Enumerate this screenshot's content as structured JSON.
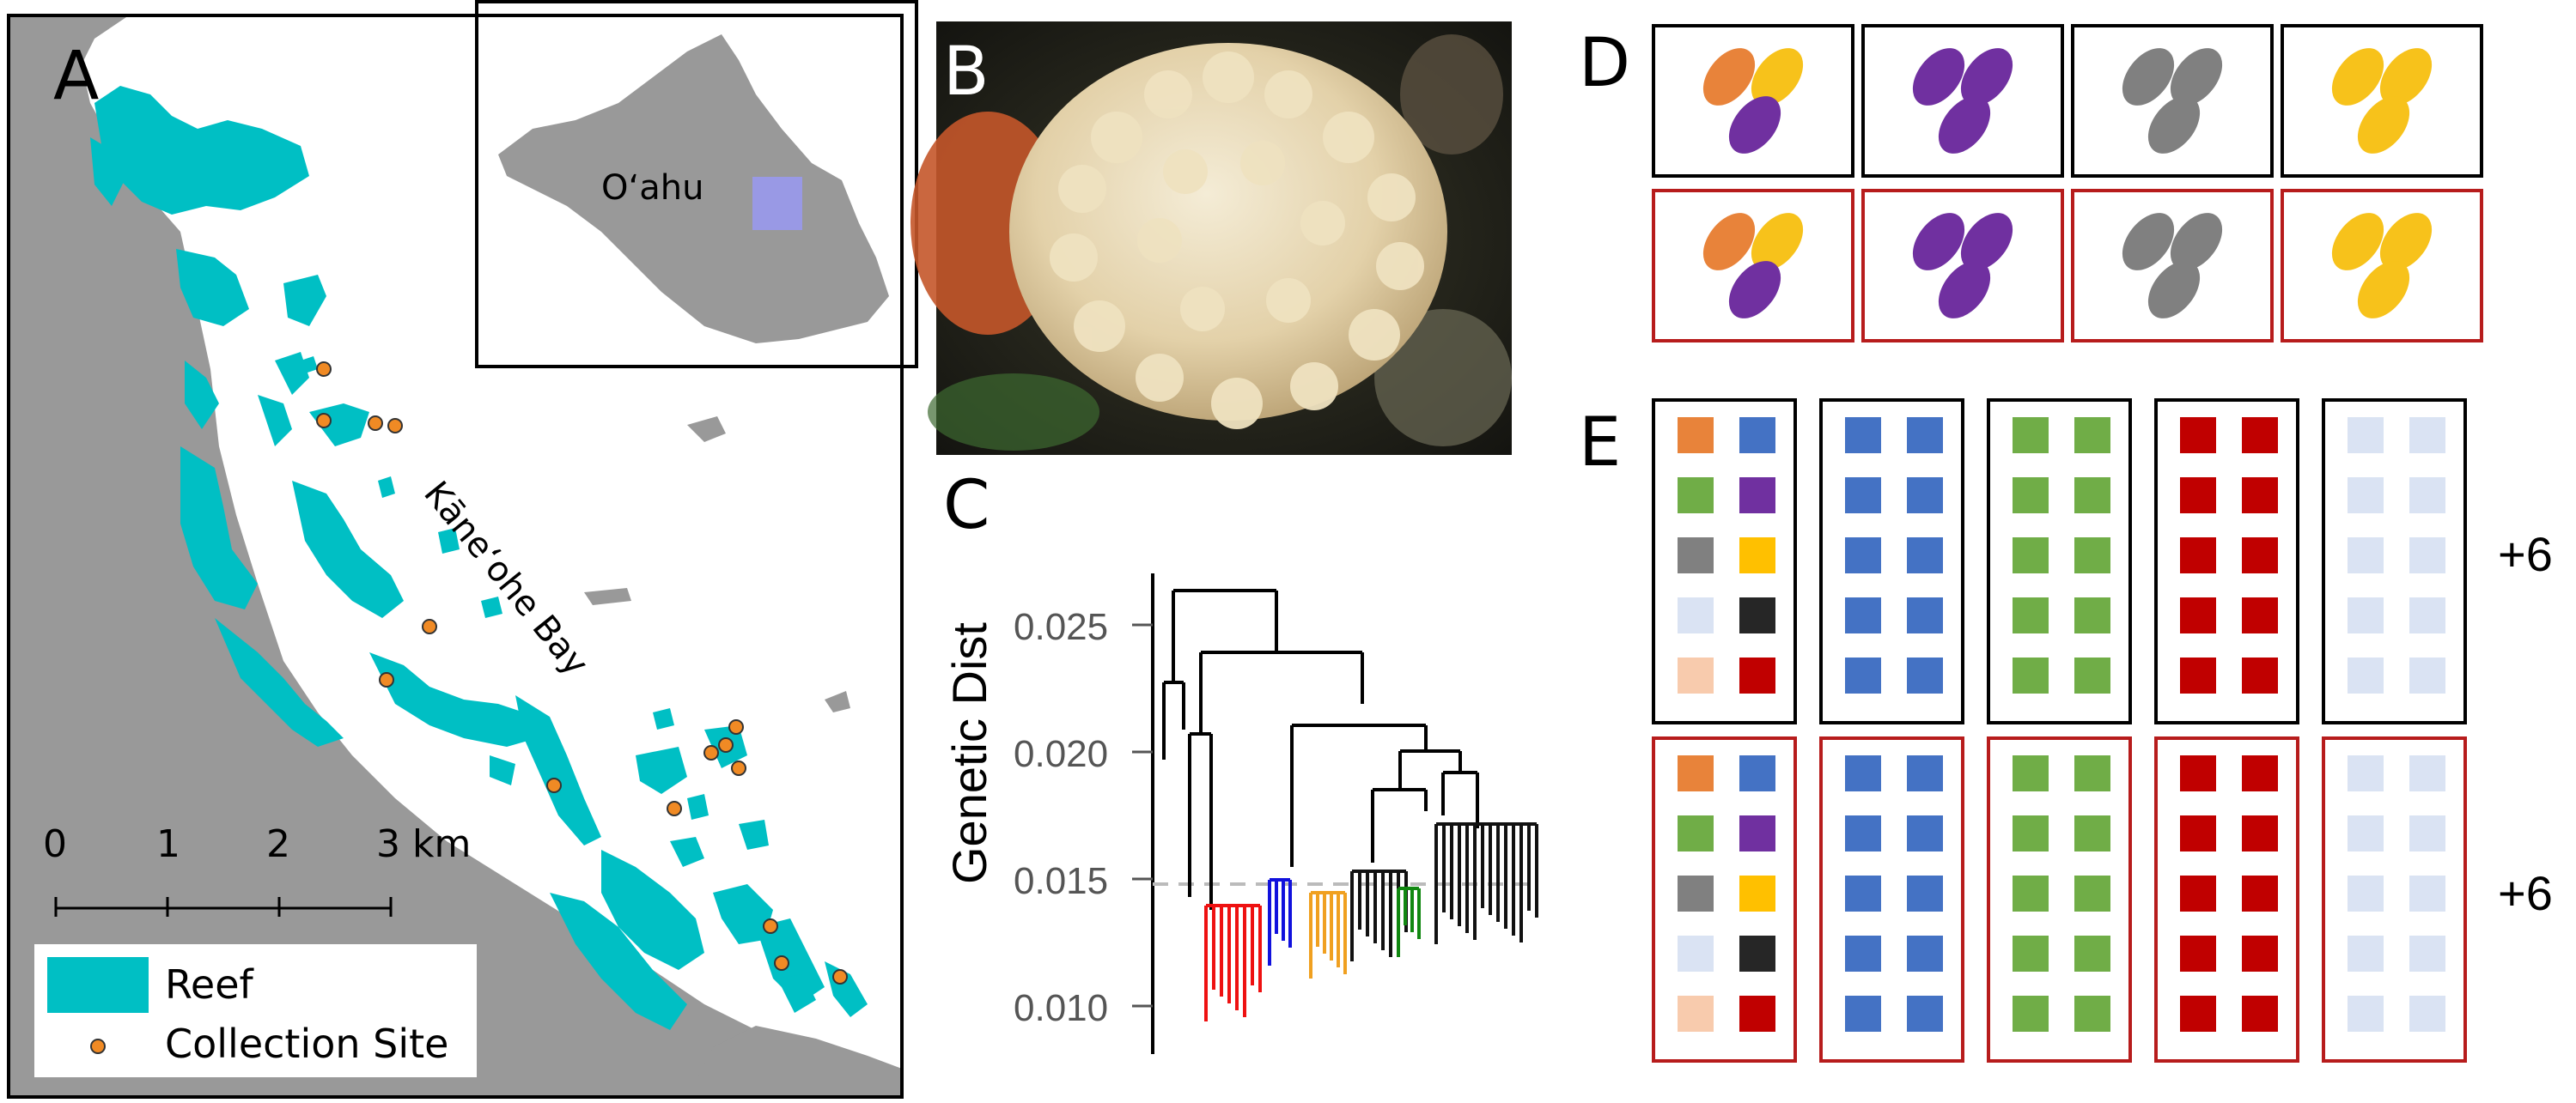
{
  "panels": {
    "a": "A",
    "b": "B",
    "c": "C",
    "d": "D",
    "e": "E"
  },
  "map": {
    "inset_label": "O‘ahu",
    "bay_label": "Kāne‘ohe Bay",
    "scale_ticks": [
      "0",
      "1",
      "2",
      "3 km"
    ],
    "legend": [
      {
        "label": "Reef",
        "color": "#00bfc4"
      },
      {
        "label": "Collection Site",
        "color": "#f08a24"
      }
    ],
    "colors": {
      "land": "#999999",
      "reef": "#00bfc4",
      "water": "#ffffff",
      "study_area": "#9999ff"
    }
  },
  "photo": {
    "subject": "branching coral colony photograph"
  },
  "dendrogram": {
    "ylabel": "Genetic Dist",
    "yticks": [
      "0.025",
      "0.020",
      "0.015",
      "0.010"
    ],
    "cut_height": 0.0148,
    "leaf_colors": [
      "#ee1111",
      "#1111dd",
      "#f0a020",
      "#111111",
      "#118811"
    ]
  },
  "pairs_panel": {
    "colors": {
      "orange": "#e8833a",
      "purple": "#7030a0",
      "gray": "#808080",
      "yellow": "#f7c21b"
    },
    "frame_colors": [
      "#000000",
      "#b71c1c"
    ],
    "rows": [
      [
        [
          "orange",
          "yellow",
          "purple"
        ],
        [
          "purple",
          "purple",
          "purple"
        ],
        [
          "gray",
          "gray",
          "gray"
        ],
        [
          "yellow",
          "yellow",
          "yellow"
        ]
      ],
      [
        [
          "orange",
          "yellow",
          "purple"
        ],
        [
          "purple",
          "purple",
          "purple"
        ],
        [
          "gray",
          "gray",
          "gray"
        ],
        [
          "yellow",
          "yellow",
          "yellow"
        ]
      ]
    ]
  },
  "grid_panel": {
    "colors": {
      "orange": "#e8833a",
      "blue": "#4472c4",
      "green": "#70ad47",
      "purple": "#7030a0",
      "gray": "#808080",
      "yellow": "#ffc000",
      "light": "#dae3f3",
      "black": "#262626",
      "peach": "#f8cbad",
      "red": "#c00000"
    },
    "frame_colors": [
      "#000000",
      "#b71c1c"
    ],
    "extra_labels": [
      "+6",
      "+6"
    ],
    "mixed_box": [
      [
        "orange",
        "blue"
      ],
      [
        "green",
        "purple"
      ],
      [
        "gray",
        "yellow"
      ],
      [
        "light",
        "black"
      ],
      [
        "peach",
        "red"
      ]
    ],
    "uniform_boxes": [
      "blue",
      "green",
      "red",
      "light"
    ]
  }
}
